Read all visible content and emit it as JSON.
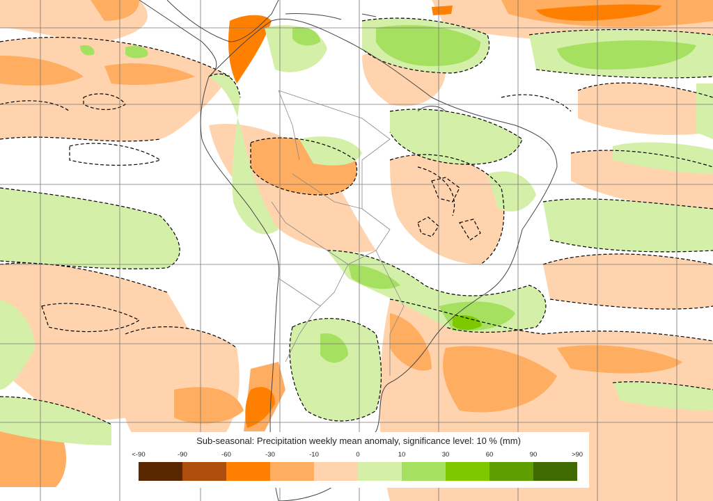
{
  "legend": {
    "title": "Sub-seasonal: Precipitation weekly mean anomaly, significance level: 10 % (mm)",
    "ticks": [
      "<-90",
      "-90",
      "-60",
      "-30",
      "-10",
      "0",
      "10",
      "30",
      "60",
      "90",
      ">90"
    ],
    "colors": [
      "#5a2800",
      "#ad4e0c",
      "#ff7f00",
      "#ffad60",
      "#ffd3ad",
      "#d4f0a8",
      "#a6e060",
      "#7ec800",
      "#5e9e00",
      "#3f6a00"
    ]
  },
  "map": {
    "region": "South America",
    "colors": {
      "dry_light": "#ffd3ad",
      "dry_mid": "#ffad60",
      "dry_strong": "#ff7f00",
      "wet_light": "#d4f0a8",
      "wet_mid": "#a6e060",
      "wet_strong": "#7ec800",
      "contour": "#000000",
      "border": "#555555",
      "grid": "#777777"
    }
  }
}
